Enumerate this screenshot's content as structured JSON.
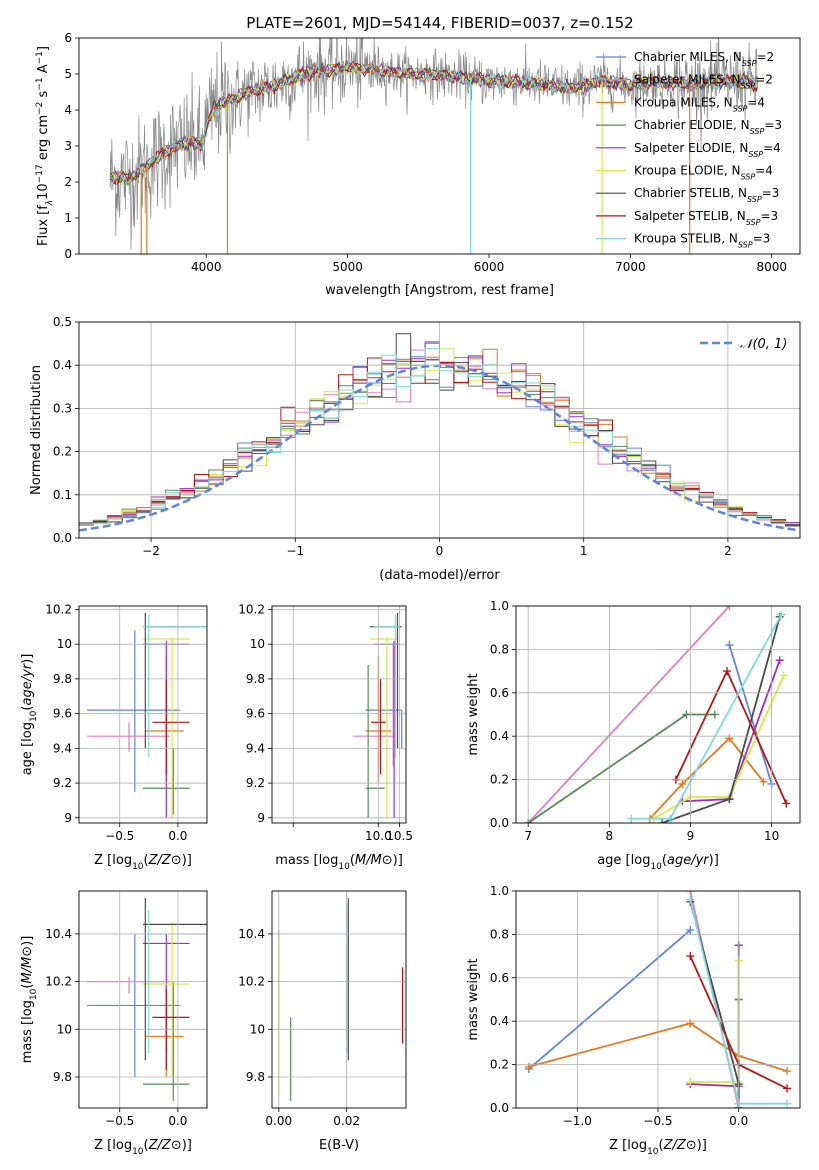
{
  "figure_title": "PLATE=2601, MJD=54144, FIBERID=0037, z=0.152",
  "colors": {
    "Chabrier MILES": "#5f86d6",
    "Salpeter MILES": "#e07fc0",
    "Kroupa MILES": "#e07a24",
    "Chabrier ELODIE": "#5a8a5a",
    "Salpeter ELODIE": "#9b30b8",
    "Kroupa ELODIE": "#d7ea46",
    "Chabrier STELIB": "#4a4a4a",
    "Salpeter STELIB": "#b01818",
    "Kroupa STELIB": "#7fd9dc",
    "data": "#888888",
    "gauss": "#5f86d6",
    "grid": "#b0b0b0"
  },
  "chart_data": [
    {
      "id": "spectrum",
      "type": "line",
      "title": "PLATE=2601, MJD=54144, FIBERID=0037, z=0.152",
      "xlabel": "wavelength [Angstrom, rest frame]",
      "ylabel_parts": [
        "Flux [f",
        "λ",
        "10",
        "−17",
        " erg cm",
        "−2",
        " s",
        "−1",
        " A",
        "−1",
        "]"
      ],
      "xlim": [
        3100,
        8200
      ],
      "ylim": [
        0,
        6
      ],
      "xticks": [
        4000,
        5000,
        6000,
        7000,
        8000
      ],
      "yticks": [
        0,
        1,
        2,
        3,
        4,
        5,
        6
      ],
      "grid": false,
      "legend_position": "right",
      "legend": [
        {
          "name": "Chabrier MILES",
          "nssp": "2"
        },
        {
          "name": "Salpeter MILES",
          "nssp": "2"
        },
        {
          "name": "Kroupa MILES",
          "nssp": "4"
        },
        {
          "name": "Chabrier ELODIE",
          "nssp": "3"
        },
        {
          "name": "Salpeter ELODIE",
          "nssp": "4"
        },
        {
          "name": "Kroupa ELODIE",
          "nssp": "4"
        },
        {
          "name": "Chabrier STELIB",
          "nssp": "3"
        },
        {
          "name": "Salpeter STELIB",
          "nssp": "3"
        },
        {
          "name": "Kroupa STELIB",
          "nssp": "3"
        }
      ],
      "model_curve": {
        "x": [
          3320,
          3400,
          3500,
          3600,
          3700,
          3800,
          3900,
          3970,
          4000,
          4050,
          4100,
          4200,
          4300,
          4400,
          4500,
          4600,
          4700,
          4800,
          4900,
          5000,
          5200,
          5400,
          5600,
          5800,
          6000,
          6200,
          6400,
          6600,
          6800,
          7000,
          7200,
          7400,
          7600,
          7800,
          7900
        ],
        "y": [
          2.1,
          2.1,
          2.2,
          2.5,
          2.8,
          3.0,
          3.1,
          3.0,
          3.5,
          4.0,
          4.2,
          4.3,
          4.5,
          4.6,
          4.7,
          4.9,
          5.0,
          5.1,
          5.1,
          5.2,
          5.1,
          5.0,
          5.0,
          4.9,
          4.8,
          4.8,
          4.7,
          4.6,
          4.8,
          4.7,
          4.8,
          4.7,
          4.8,
          4.8,
          4.7
        ]
      },
      "sharp_lines_x": [
        3540,
        3580,
        4150,
        5870,
        6800,
        7420
      ]
    },
    {
      "id": "residuals",
      "type": "histogram",
      "xlabel": "(data-model)/error",
      "ylabel": "Normed distribution",
      "xlim": [
        -2.5,
        2.5
      ],
      "ylim": [
        0,
        0.5
      ],
      "xticks": [
        -2,
        -1,
        0,
        1,
        2
      ],
      "xtick_labels": [
        "−2",
        "−1",
        "0",
        "1",
        "2"
      ],
      "yticks": [
        0.0,
        0.1,
        0.2,
        0.3,
        0.4,
        0.5
      ],
      "ytick_labels": [
        "0.0",
        "0.1",
        "0.2",
        "0.3",
        "0.4",
        "0.5"
      ],
      "grid": true,
      "legend": "𝒩(0, 1)",
      "legend_position": "top-right",
      "bin_width": 0.1
    },
    {
      "id": "age_vs_Z",
      "type": "errorbar",
      "xlabel": "Z [log10(Z/Z⊙)]",
      "ylabel": "age  [log10(age/yr)]",
      "xlim": [
        -0.85,
        0.25
      ],
      "ylim": [
        8.97,
        10.22
      ],
      "xticks": [
        -0.5,
        0.0
      ],
      "xtick_labels": [
        "−0.5",
        "0.0"
      ],
      "yticks": [
        9.0,
        9.2,
        9.4,
        9.6,
        9.8,
        10.0,
        10.2
      ],
      "grid": true,
      "points": [
        {
          "s": "Chabrier MILES",
          "x": -0.37,
          "xe": [
            -0.78,
            0.02
          ],
          "y": 9.62,
          "ye": [
            9.15,
            10.08
          ]
        },
        {
          "s": "Salpeter MILES",
          "x": -0.42,
          "xe": [
            -0.78,
            -0.07
          ],
          "y": 9.47,
          "ye": [
            9.38,
            9.55
          ]
        },
        {
          "s": "Kroupa MILES",
          "x": -0.1,
          "xe": [
            -0.28,
            0.05
          ],
          "y": 9.5,
          "ye": [
            9.2,
            9.93
          ]
        },
        {
          "s": "Chabrier ELODIE",
          "x": -0.04,
          "xe": [
            -0.3,
            0.1
          ],
          "y": 9.17,
          "ye": [
            9.02,
            9.4
          ]
        },
        {
          "s": "Salpeter ELODIE",
          "x": -0.1,
          "xe": [
            -0.3,
            0.1
          ],
          "y": 10.0,
          "ye": [
            9.0,
            10.02
          ]
        },
        {
          "s": "Kroupa ELODIE",
          "x": -0.05,
          "xe": [
            -0.3,
            0.1
          ],
          "y": 10.03,
          "ye": [
            9.0,
            10.04
          ]
        },
        {
          "s": "Chabrier STELIB",
          "x": -0.28,
          "xe": [
            -0.3,
            0.25
          ],
          "y": 10.1,
          "ye": [
            9.4,
            10.18
          ]
        },
        {
          "s": "Salpeter STELIB",
          "x": -0.1,
          "xe": [
            -0.22,
            0.1
          ],
          "y": 9.55,
          "ye": [
            9.25,
            9.8
          ]
        },
        {
          "s": "Kroupa STELIB",
          "x": -0.25,
          "xe": [
            -0.3,
            0.25
          ],
          "y": 10.1,
          "ye": [
            9.35,
            10.17
          ]
        }
      ]
    },
    {
      "id": "age_vs_mass",
      "type": "errorbar",
      "xlabel": "mass [log10(M/M⊙)]",
      "ylabel": "",
      "xlim": [
        7.5,
        10.65
      ],
      "ylim": [
        8.97,
        10.22
      ],
      "xticks": [
        8,
        10,
        10.5
      ],
      "xtick_labels": [
        "",
        "10.0",
        "10.5"
      ],
      "yticks": [
        9.0,
        9.2,
        9.4,
        9.6,
        9.8,
        10.0,
        10.2
      ],
      "grid": true,
      "points": [
        {
          "s": "Chabrier MILES",
          "x": 10.55,
          "xe": [
            9.7,
            10.55
          ],
          "y": 9.62,
          "ye": [
            9.4,
            9.62
          ]
        },
        {
          "s": "Salpeter MILES",
          "x": 10.35,
          "xe": [
            9.4,
            10.35
          ],
          "y": 9.47,
          "ye": [
            9.3,
            10.0
          ]
        },
        {
          "s": "Kroupa MILES",
          "x": 10.0,
          "xe": [
            9.7,
            10.3
          ],
          "y": 9.5,
          "ye": [
            9.2,
            9.93
          ]
        },
        {
          "s": "Chabrier ELODIE",
          "x": 9.76,
          "xe": [
            9.7,
            10.15
          ],
          "y": 9.17,
          "ye": [
            9.0,
            9.88
          ]
        },
        {
          "s": "Salpeter ELODIE",
          "x": 10.37,
          "xe": [
            9.9,
            10.5
          ],
          "y": 10.0,
          "ye": [
            9.0,
            10.02
          ]
        },
        {
          "s": "Kroupa ELODIE",
          "x": 10.2,
          "xe": [
            9.8,
            10.45
          ],
          "y": 10.03,
          "ye": [
            9.0,
            10.04
          ]
        },
        {
          "s": "Chabrier STELIB",
          "x": 10.45,
          "xe": [
            9.8,
            10.55
          ],
          "y": 10.1,
          "ye": [
            9.4,
            10.18
          ]
        },
        {
          "s": "Salpeter STELIB",
          "x": 10.05,
          "xe": [
            9.83,
            10.17
          ],
          "y": 9.55,
          "ye": [
            9.25,
            9.8
          ]
        },
        {
          "s": "Kroupa STELIB",
          "x": 10.4,
          "xe": [
            9.9,
            10.5
          ],
          "y": 10.1,
          "ye": [
            9.35,
            10.17
          ]
        }
      ]
    },
    {
      "id": "weight_vs_age",
      "type": "line",
      "xlabel": "age  [log10(age/yr)]",
      "ylabel": "mass weight",
      "xlim": [
        6.85,
        10.35
      ],
      "ylim": [
        0,
        1
      ],
      "xticks": [
        7,
        8,
        9,
        10
      ],
      "yticks": [
        0.0,
        0.2,
        0.4,
        0.6,
        0.8,
        1.0
      ],
      "ytick_labels": [
        "0.0",
        "0.2",
        "0.4",
        "0.6",
        "0.8",
        "1.0"
      ],
      "grid": true,
      "series": [
        {
          "name": "Chabrier MILES",
          "x": [
            9.48,
            10.0
          ],
          "y": [
            0.82,
            0.18
          ]
        },
        {
          "name": "Salpeter MILES",
          "x": [
            7.0,
            9.48
          ],
          "y": [
            0.0,
            1.0
          ]
        },
        {
          "name": "Kroupa MILES",
          "x": [
            8.5,
            8.9,
            9.48,
            9.9
          ],
          "y": [
            0.02,
            0.18,
            0.39,
            0.19
          ]
        },
        {
          "name": "Chabrier ELODIE",
          "x": [
            7.0,
            8.95,
            9.3
          ],
          "y": [
            0.0,
            0.5,
            0.5
          ]
        },
        {
          "name": "Salpeter ELODIE",
          "x": [
            8.9,
            9.48,
            10.1
          ],
          "y": [
            0.1,
            0.11,
            0.75
          ]
        },
        {
          "name": "Kroupa ELODIE",
          "x": [
            8.55,
            9.0,
            9.48,
            10.15
          ],
          "y": [
            0.02,
            0.12,
            0.12,
            0.68
          ]
        },
        {
          "name": "Chabrier STELIB",
          "x": [
            8.65,
            9.48,
            10.1
          ],
          "y": [
            0.0,
            0.11,
            0.95
          ]
        },
        {
          "name": "Salpeter STELIB",
          "x": [
            8.82,
            9.45,
            10.18
          ],
          "y": [
            0.2,
            0.7,
            0.09
          ]
        },
        {
          "name": "Kroupa STELIB",
          "x": [
            8.27,
            8.75,
            10.12
          ],
          "y": [
            0.02,
            0.02,
            0.96
          ]
        }
      ]
    },
    {
      "id": "mass_vs_Z",
      "type": "errorbar",
      "xlabel": "Z [log10(Z/Z⊙)]",
      "ylabel": "mass [log10(M/M⊙)]",
      "xlim": [
        -0.85,
        0.25
      ],
      "ylim": [
        9.67,
        10.58
      ],
      "xticks": [
        -0.5,
        0.0
      ],
      "xtick_labels": [
        "−0.5",
        "0.0"
      ],
      "yticks": [
        9.8,
        10.0,
        10.2,
        10.4
      ],
      "grid": true,
      "points": [
        {
          "s": "Chabrier MILES",
          "x": -0.37,
          "xe": [
            -0.78,
            0.02
          ],
          "y": 10.1,
          "ye": [
            9.8,
            10.4
          ]
        },
        {
          "s": "Salpeter MILES",
          "x": -0.42,
          "xe": [
            -0.78,
            -0.07
          ],
          "y": 10.2,
          "ye": [
            10.15,
            10.22
          ]
        },
        {
          "s": "Kroupa MILES",
          "x": -0.1,
          "xe": [
            -0.28,
            0.05
          ],
          "y": 9.97,
          "ye": [
            9.8,
            10.1
          ]
        },
        {
          "s": "Chabrier ELODIE",
          "x": -0.04,
          "xe": [
            -0.3,
            0.1
          ],
          "y": 9.77,
          "ye": [
            9.7,
            10.2
          ]
        },
        {
          "s": "Salpeter ELODIE",
          "x": -0.1,
          "xe": [
            -0.3,
            0.1
          ],
          "y": 10.36,
          "ye": [
            9.9,
            10.4
          ]
        },
        {
          "s": "Kroupa ELODIE",
          "x": -0.05,
          "xe": [
            -0.3,
            0.1
          ],
          "y": 10.19,
          "ye": [
            9.8,
            10.45
          ]
        },
        {
          "s": "Chabrier STELIB",
          "x": -0.28,
          "xe": [
            -0.3,
            0.25
          ],
          "y": 10.44,
          "ye": [
            9.87,
            10.55
          ]
        },
        {
          "s": "Salpeter STELIB",
          "x": -0.1,
          "xe": [
            -0.22,
            0.1
          ],
          "y": 10.05,
          "ye": [
            9.83,
            10.17
          ]
        },
        {
          "s": "Kroupa STELIB",
          "x": -0.25,
          "xe": [
            -0.3,
            0.25
          ],
          "y": 10.4,
          "ye": [
            9.9,
            10.5
          ]
        }
      ]
    },
    {
      "id": "mass_vs_ebv",
      "type": "errorbar",
      "xlabel": "E(B-V)",
      "ylabel": "",
      "xlim": [
        -0.002,
        0.0375
      ],
      "ylim": [
        9.67,
        10.58
      ],
      "xticks": [
        0.0,
        0.02
      ],
      "xtick_labels": [
        "0.00",
        "0.02"
      ],
      "yticks": [
        9.8,
        10.0,
        10.2,
        10.4
      ],
      "grid": true,
      "vbars": [
        {
          "s": "Salpeter MILES",
          "x": 0.0,
          "ye": [
            10.0,
            10.42
          ]
        },
        {
          "s": "Kroupa ELODIE",
          "x": 0.0,
          "ye": [
            9.72,
            10.38
          ]
        },
        {
          "s": "Chabrier ELODIE",
          "x": 0.0035,
          "ye": [
            9.7,
            10.05
          ]
        },
        {
          "s": "Chabrier STELIB",
          "x": 0.0205,
          "ye": [
            9.87,
            10.55
          ]
        },
        {
          "s": "Kroupa STELIB",
          "x": 0.02,
          "ye": [
            9.9,
            10.53
          ]
        },
        {
          "s": "Salpeter STELIB",
          "x": 0.0365,
          "ye": [
            9.94,
            10.26
          ]
        }
      ]
    },
    {
      "id": "weight_vs_Z",
      "type": "line",
      "xlabel": "Z [log10(Z/Z⊙)]",
      "ylabel": "mass weight",
      "xlim": [
        -1.38,
        0.38
      ],
      "ylim": [
        0,
        1
      ],
      "xticks": [
        -1.0,
        -0.5,
        0.0
      ],
      "xtick_labels": [
        "−1.0",
        "−0.5",
        "0.0"
      ],
      "yticks": [
        0.0,
        0.2,
        0.4,
        0.6,
        0.8,
        1.0
      ],
      "ytick_labels": [
        "0.0",
        "0.2",
        "0.4",
        "0.6",
        "0.8",
        "1.0"
      ],
      "grid": true,
      "series": [
        {
          "name": "Chabrier MILES",
          "x": [
            -0.3,
            -1.3
          ],
          "y": [
            0.82,
            0.18
          ]
        },
        {
          "name": "Salpeter MILES",
          "x": [
            -0.3,
            0.0
          ],
          "y": [
            1.0,
            0.0
          ]
        },
        {
          "name": "Kroupa MILES",
          "x": [
            -1.3,
            -0.3,
            0.0,
            0.3
          ],
          "y": [
            0.19,
            0.39,
            0.24,
            0.17
          ]
        },
        {
          "name": "Chabrier ELODIE",
          "x": [
            0.0,
            0.0,
            0.0
          ],
          "y": [
            0.5,
            0.5,
            0.02
          ]
        },
        {
          "name": "Salpeter ELODIE",
          "x": [
            -0.3,
            0.0,
            0.0
          ],
          "y": [
            0.11,
            0.1,
            0.75
          ]
        },
        {
          "name": "Kroupa ELODIE",
          "x": [
            -0.3,
            0.0,
            0.0
          ],
          "y": [
            0.12,
            0.12,
            0.68
          ]
        },
        {
          "name": "Chabrier STELIB",
          "x": [
            -0.3,
            0.0,
            0.0
          ],
          "y": [
            0.95,
            0.11,
            0.0
          ]
        },
        {
          "name": "Salpeter STELIB",
          "x": [
            -0.3,
            0.0,
            0.3
          ],
          "y": [
            0.7,
            0.2,
            0.09
          ]
        },
        {
          "name": "Kroupa STELIB",
          "x": [
            -0.3,
            0.0,
            0.3
          ],
          "y": [
            0.96,
            0.02,
            0.02
          ]
        }
      ]
    }
  ]
}
